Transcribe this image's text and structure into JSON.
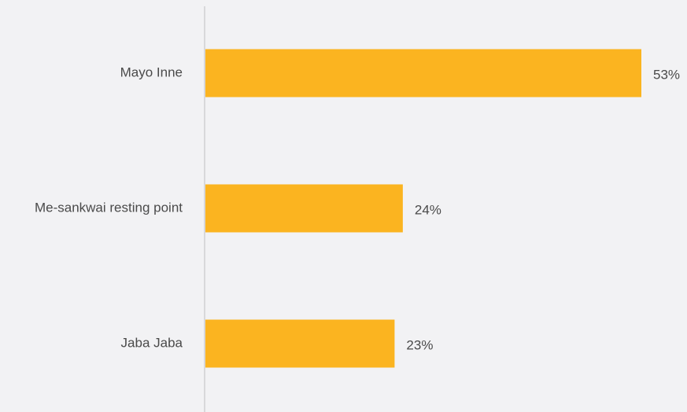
{
  "chart_data": {
    "type": "bar",
    "orientation": "horizontal",
    "categories": [
      "Mayo Inne",
      "Me-sankwai resting point",
      "Jaba Jaba"
    ],
    "values": [
      53,
      24,
      23
    ],
    "value_labels": [
      "53%",
      "24%",
      "23%"
    ],
    "unit": "%",
    "title": "",
    "xlabel": "",
    "ylabel": "",
    "xlim": [
      0,
      53
    ],
    "grid": false,
    "legend": "none"
  },
  "colors": {
    "background": "#f2f2f4",
    "bar": "#fbb420",
    "axis": "#d0d0d2",
    "text": "#4a4a4a"
  }
}
